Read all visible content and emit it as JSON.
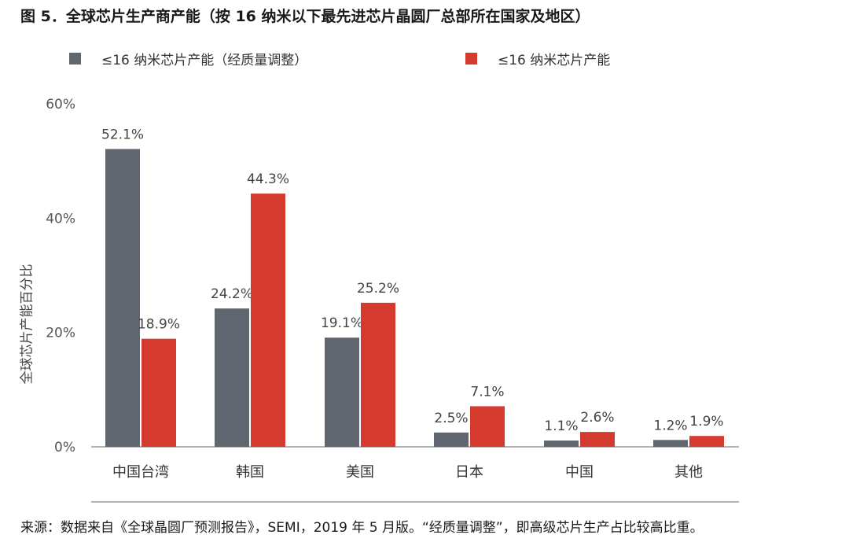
{
  "title": "图 5．全球芯片生产商产能（按 16 纳米以下最先进芯片晶圆厂总部所在国家及地区）",
  "colors": {
    "series_adjusted": "#5f6670",
    "series_raw": "#d43a2e"
  },
  "legend": {
    "item1": "≤16 纳米芯片产能（经质量调整）",
    "item2": "≤16 纳米芯片产能"
  },
  "source": "来源：数据来自《全球晶圆厂预测报告》，SEMI，2019 年 5 月版。“经质量调整”，即高级芯片生产占比较高比重。",
  "chart_data": {
    "type": "bar",
    "title": "图 5．全球芯片生产商产能（按 16 纳米以下最先进芯片晶圆厂总部所在国家及地区）",
    "xlabel": "",
    "ylabel": "全球芯片产能百分比",
    "categories": [
      "中国台湾",
      "韩国",
      "美国",
      "日本",
      "中国",
      "其他"
    ],
    "series": [
      {
        "name": "≤16 纳米芯片产能（经质量调整）",
        "values": [
          52.1,
          24.2,
          19.1,
          2.5,
          1.1,
          1.2
        ],
        "labels": [
          "52.1%",
          "24.2%",
          "19.1%",
          "2.5%",
          "1.1%",
          "1.2%"
        ]
      },
      {
        "name": "≤16 纳米芯片产能",
        "values": [
          18.9,
          44.3,
          25.2,
          7.1,
          2.6,
          1.9
        ],
        "labels": [
          "18.9%",
          "44.3%",
          "25.2%",
          "7.1%",
          "2.6%",
          "1.9%"
        ]
      }
    ],
    "ylim": [
      0,
      60
    ],
    "yticks": [
      0,
      20,
      40,
      60
    ],
    "ytick_labels": [
      "0%",
      "20%",
      "40%",
      "60%"
    ],
    "grid": false,
    "legend_position": "top"
  }
}
